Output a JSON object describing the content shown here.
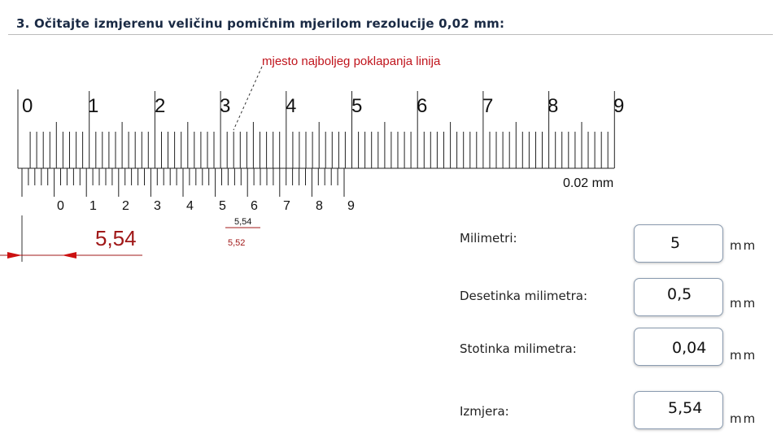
{
  "title": "3. Očitajte izmjerenu veličinu pomičnim mjerilom rezolucije 0,02 mm:",
  "diagram": {
    "annotation": "mjesto najboljeg poklapanja linija",
    "main_scale_numbers": [
      "0",
      "1",
      "2",
      "3",
      "4",
      "5",
      "6",
      "7",
      "8",
      "9"
    ],
    "vernier_label": "0.02 mm",
    "vernier_numbers": [
      "0",
      "1",
      "2",
      "3",
      "4",
      "5",
      "6",
      "7",
      "8",
      "9"
    ],
    "small_label_top": "5,54",
    "small_label_bottom": "5,52",
    "result": "5,54"
  },
  "rows": [
    {
      "label": "Milimetri:",
      "value": "5",
      "unit": "mm"
    },
    {
      "label": "Desetinka milimetra:",
      "value": "0,5",
      "unit": "mm"
    },
    {
      "label": "Stotinka milimetra:",
      "value": "0,04",
      "unit": "mm"
    },
    {
      "label": "Izmjera:",
      "value": "5,54",
      "unit": "mm"
    }
  ],
  "colors": {
    "annotation": "#c0141c",
    "result": "#a01818",
    "arrow": "#cc1111",
    "box_border": "#8a9bb0"
  }
}
